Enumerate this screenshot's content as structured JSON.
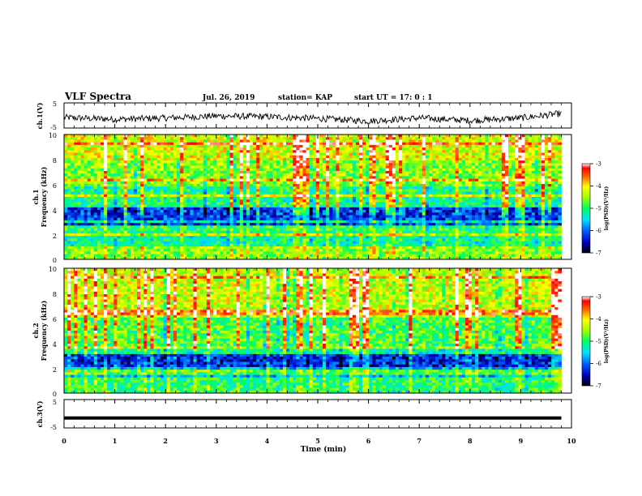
{
  "header": {
    "title": "VLF Spectra",
    "date": "Jul. 26, 2019",
    "station": "station= KAP",
    "start": "start UT =  17: 0  : 1"
  },
  "colors": {
    "scale": [
      "#000080",
      "#0000ff",
      "#0080ff",
      "#00e0ff",
      "#00ff80",
      "#80ff00",
      "#ffff00",
      "#ff8000",
      "#ff0000",
      "#ffffff"
    ]
  },
  "chart_data": [
    {
      "type": "line",
      "ylabel": "ch.1(V)",
      "ylim": [
        -5,
        5
      ],
      "y_ticks": [
        "5",
        "-5"
      ],
      "x": [
        0,
        1,
        2,
        3,
        4,
        5,
        6,
        7,
        8,
        9,
        9.8
      ],
      "values": [
        -0.8,
        -1.5,
        -1.0,
        -0.2,
        -0.5,
        -1.2,
        -2.2,
        -1.0,
        -2.0,
        -1.0,
        0.8
      ]
    },
    {
      "type": "heatmap",
      "ylabel": "ch.1\nFrequency (kHz)",
      "ylim": [
        0,
        10
      ],
      "y_ticks": [
        "0",
        "2",
        "4",
        "6",
        "8",
        "10"
      ],
      "colorbar_label": "log(PSD)(V²/Hz)",
      "colorbar_ticks": [
        "-3",
        "-4",
        "-5",
        "-6",
        "-7"
      ],
      "zlim": [
        -7,
        -3
      ],
      "x_range_min": [
        0,
        9.8
      ],
      "bands_khz": [
        {
          "range": [
            0,
            1.0
          ],
          "level": -4.6
        },
        {
          "range": [
            1.0,
            2.0
          ],
          "level": -5.2
        },
        {
          "range": [
            2.0,
            2.8
          ],
          "level": -5.0
        },
        {
          "range": [
            2.8,
            4.2
          ],
          "level": -6.2
        },
        {
          "range": [
            4.2,
            5.8
          ],
          "level": -5.1
        },
        {
          "range": [
            5.8,
            8.0
          ],
          "level": -4.6
        },
        {
          "range": [
            8.0,
            10.0
          ],
          "level": -4.2
        }
      ]
    },
    {
      "type": "heatmap",
      "ylabel": "ch.2\nFrequency (kHz)",
      "ylim": [
        0,
        10
      ],
      "y_ticks": [
        "0",
        "2",
        "4",
        "6",
        "8",
        "10"
      ],
      "colorbar_label": "log(PSD)(V²/Hz)",
      "colorbar_ticks": [
        "-3",
        "-4",
        "-5",
        "-6",
        "-7"
      ],
      "zlim": [
        -7,
        -3
      ],
      "x_range_min": [
        0,
        9.8
      ],
      "bands_khz": [
        {
          "range": [
            0,
            1.2
          ],
          "level": -5.0
        },
        {
          "range": [
            1.2,
            2.0
          ],
          "level": -5.6
        },
        {
          "range": [
            2.0,
            3.2
          ],
          "level": -6.3
        },
        {
          "range": [
            3.2,
            3.8
          ],
          "level": -5.2
        },
        {
          "range": [
            3.8,
            6.0
          ],
          "level": -4.8
        },
        {
          "range": [
            6.0,
            10.0
          ],
          "level": -4.3
        }
      ]
    },
    {
      "type": "line",
      "ylabel": "ch.3(V)",
      "ylim": [
        -5,
        5
      ],
      "y_ticks": [
        "5",
        "-5"
      ],
      "x": [
        0,
        9.8
      ],
      "values": [
        -1.5,
        -1.5
      ]
    }
  ],
  "x_axis": {
    "label": "Time (min)",
    "ticks": [
      "0",
      "1",
      "2",
      "3",
      "4",
      "5",
      "6",
      "7",
      "8",
      "9",
      "10"
    ],
    "range": [
      0,
      10
    ]
  }
}
